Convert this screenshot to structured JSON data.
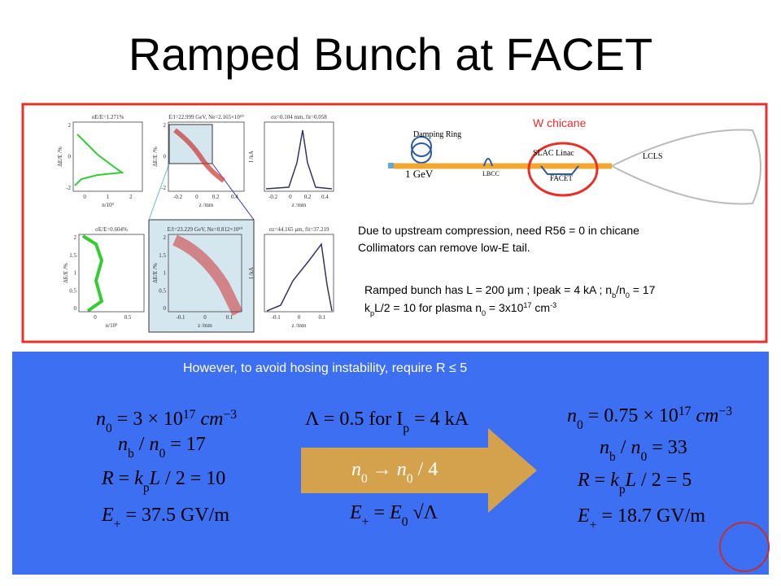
{
  "title": "Ramped Bunch at FACET",
  "top_panel": {
    "plots": [
      {
        "title": "σE/E=1.271%",
        "xlabel": "n/10³",
        "ylabel": "ΔE/E /%",
        "xticks": [
          "0",
          "1",
          "2"
        ],
        "yticks": [
          "2",
          "0",
          "-2"
        ]
      },
      {
        "title": "E/l=22.999 GeV, Ne=2.165×10¹⁰",
        "xlabel": "z /mm",
        "ylabel": "ΔE/E /%",
        "xticks": [
          "-0.2",
          "0",
          "0.2",
          "0.4"
        ],
        "yticks": [
          "2",
          "0",
          "-2"
        ]
      },
      {
        "title": "σz=0.104 mm, fit=0.058",
        "xlabel": "z /mm",
        "ylabel": "I /kA",
        "xticks": [
          "-0.2",
          "0",
          "0.2",
          "0.4"
        ],
        "yticks": []
      },
      {
        "title": "σE/E=0.604%",
        "xlabel": "n/10³",
        "ylabel": "ΔE/E /%",
        "xticks": [
          "0",
          "0.5"
        ],
        "yticks": [
          "2",
          "1.5",
          "1",
          "0.5",
          "0"
        ]
      },
      {
        "title": "E/l=23.229 GeV, Ne=0.812×10¹⁰",
        "xlabel": "z /mm",
        "ylabel": "ΔE/E /%",
        "xticks": [
          "-0.1",
          "0",
          "0.1"
        ],
        "yticks": [
          "2",
          "1.5",
          "1",
          "0.5",
          "0"
        ]
      },
      {
        "title": "σz=44.165 μm, fit=37.219",
        "xlabel": "z /mm",
        "ylabel": "I /kA",
        "xticks": [
          "-0.1",
          "0",
          "0.1"
        ],
        "yticks": []
      }
    ],
    "diagram": {
      "highlight": "W chicane",
      "labels": [
        "Damping Ring",
        "1 GeV",
        "LBCC",
        "SLAC Linac",
        "FACET",
        "LCLS"
      ]
    },
    "notes": [
      "Due to upstream compression, need R56 = 0 in chicane",
      "Collimators can remove low-E tail."
    ],
    "bunch_notes": [
      [
        {
          "t": "Ramped bunch has L = 200 μm ; Ipeak = 4 kA ; n"
        },
        {
          "t": "b",
          "s": "sub"
        },
        {
          "t": "/n"
        },
        {
          "t": "0",
          "s": "sub"
        },
        {
          "t": " = 17"
        }
      ],
      [
        {
          "t": "k"
        },
        {
          "t": "p",
          "s": "sub"
        },
        {
          "t": "L/2 = 10 for plasma n"
        },
        {
          "t": "0",
          "s": "sub"
        },
        {
          "t": " = 3x10"
        },
        {
          "t": "17",
          "s": "sup"
        },
        {
          "t": " cm"
        },
        {
          "t": "-3",
          "s": "sup"
        }
      ]
    ]
  },
  "bottom_panel": {
    "heading": "However, to avoid hosing instability, require R ≤ 5",
    "left": [
      [
        {
          "t": "n",
          "s": "i"
        },
        {
          "t": "0",
          "s": "sub"
        },
        {
          "t": " = 3 × 10"
        },
        {
          "t": "17",
          "s": "sup"
        },
        {
          "t": " cm",
          "s": "i"
        },
        {
          "t": "−3",
          "s": "sup"
        }
      ],
      [
        {
          "t": "n",
          "s": "i"
        },
        {
          "t": "b",
          "s": "sub"
        },
        {
          "t": " / "
        },
        {
          "t": "n",
          "s": "i"
        },
        {
          "t": "0",
          "s": "sub"
        },
        {
          "t": " = 17"
        }
      ],
      [
        {
          "t": "R",
          "s": "i"
        },
        {
          "t": " = "
        },
        {
          "t": "k",
          "s": "i"
        },
        {
          "t": "p",
          "s": "sub"
        },
        {
          "t": "L",
          "s": "i"
        },
        {
          "t": " / 2 = 10"
        }
      ],
      [
        {
          "t": "E",
          "s": "i"
        },
        {
          "t": "+",
          "s": "sub"
        },
        {
          "t": " = 37.5 GV/m"
        }
      ]
    ],
    "middle": [
      [
        {
          "t": "Λ = 0.5  for  I"
        },
        {
          "t": "p",
          "s": "sub"
        },
        {
          "t": " = 4 kA"
        }
      ],
      [
        {
          "t": "n",
          "s": "i"
        },
        {
          "t": "0",
          "s": "sub"
        },
        {
          "t": " → "
        },
        {
          "t": "n",
          "s": "i"
        },
        {
          "t": "0",
          "s": "sub"
        },
        {
          "t": " / 4"
        }
      ],
      [
        {
          "t": "E",
          "s": "i"
        },
        {
          "t": "+",
          "s": "sub"
        },
        {
          "t": " = "
        },
        {
          "t": "E",
          "s": "i"
        },
        {
          "t": "0",
          "s": "sub"
        },
        {
          "t": " √Λ"
        }
      ]
    ],
    "right": [
      [
        {
          "t": "n",
          "s": "i"
        },
        {
          "t": "0",
          "s": "sub"
        },
        {
          "t": " = 0.75 × 10"
        },
        {
          "t": "17",
          "s": "sup"
        },
        {
          "t": " cm",
          "s": "i"
        },
        {
          "t": "−3",
          "s": "sup"
        }
      ],
      [
        {
          "t": "n",
          "s": "i"
        },
        {
          "t": "b",
          "s": "sub"
        },
        {
          "t": " / "
        },
        {
          "t": "n",
          "s": "i"
        },
        {
          "t": "0",
          "s": "sub"
        },
        {
          "t": " = 33"
        }
      ],
      [
        {
          "t": "R",
          "s": "i"
        },
        {
          "t": " = "
        },
        {
          "t": "k",
          "s": "i"
        },
        {
          "t": "p",
          "s": "sub"
        },
        {
          "t": "L",
          "s": "i"
        },
        {
          "t": " / 2 = 5"
        }
      ],
      [
        {
          "t": "E",
          "s": "i"
        },
        {
          "t": "+",
          "s": "sub"
        },
        {
          "t": " = 18.7 GV/m"
        }
      ]
    ]
  }
}
